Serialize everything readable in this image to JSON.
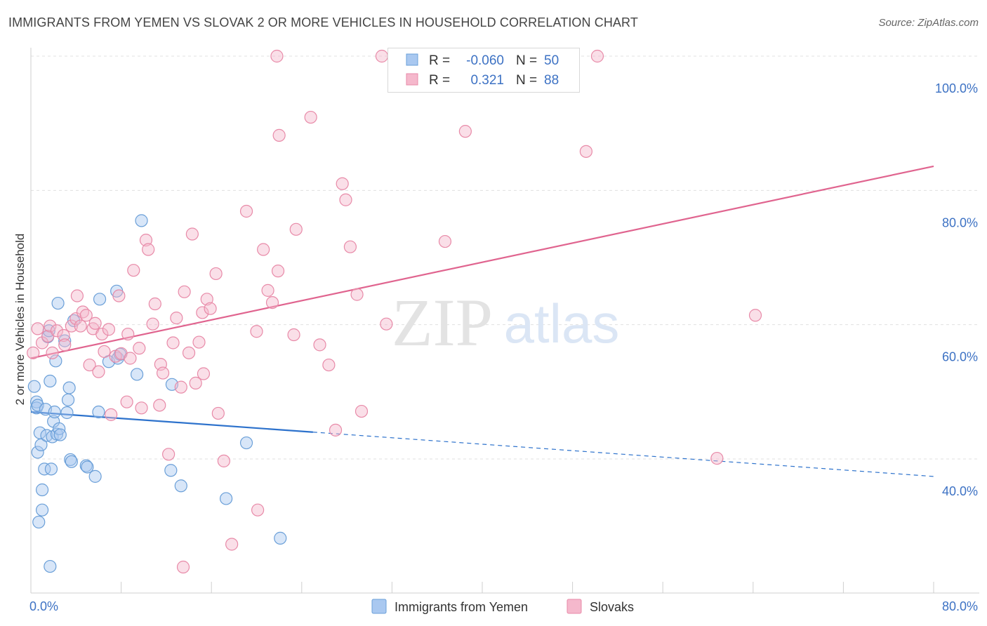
{
  "title": "IMMIGRANTS FROM YEMEN VS SLOVAK 2 OR MORE VEHICLES IN HOUSEHOLD CORRELATION CHART",
  "source": "Source: ZipAtlas.com",
  "watermark": {
    "zip": "ZIP",
    "atlas": "atlas"
  },
  "colors": {
    "blue_fill": "#a9c8f0",
    "blue_stroke": "#6a9fd8",
    "blue_line": "#2d72cc",
    "pink_fill": "#f5b8cc",
    "pink_stroke": "#e88aa8",
    "pink_line": "#e0648f",
    "axis_label": "#3d72c4",
    "grid": "#e0e0e0"
  },
  "stats_legend": [
    {
      "r_label": "R =",
      "r_value": "-0.060",
      "n_label": "N =",
      "n_value": "50",
      "color": "blue"
    },
    {
      "r_label": "R =",
      "r_value": "0.321",
      "n_label": "N =",
      "n_value": "88",
      "color": "pink"
    }
  ],
  "chart_data": {
    "type": "scatter",
    "xlabel": "",
    "ylabel": "2 or more Vehicles in Household",
    "xlim": [
      0,
      80
    ],
    "ylim": [
      20,
      103
    ],
    "x_tick_labels": [
      "0.0%",
      "80.0%"
    ],
    "y_ticks": [
      40,
      60,
      80,
      100
    ],
    "y_tick_labels": [
      "40.0%",
      "60.0%",
      "80.0%",
      "100.0%"
    ],
    "grid": true,
    "legend": "bottom",
    "series": [
      {
        "name": "Immigrants from Yemen",
        "color": "blue",
        "trend": {
          "x": [
            0,
            25
          ],
          "y": [
            47.0,
            44.0
          ],
          "dashed_to_x": 80,
          "dashed_to_y": 37.4
        },
        "points": [
          [
            0.3,
            50.8
          ],
          [
            0.5,
            48.5
          ],
          [
            0.5,
            47.6
          ],
          [
            0.6,
            48.0
          ],
          [
            0.6,
            41.0
          ],
          [
            0.7,
            30.6
          ],
          [
            0.8,
            43.9
          ],
          [
            0.9,
            42.1
          ],
          [
            1.0,
            35.4
          ],
          [
            1.0,
            32.4
          ],
          [
            1.2,
            38.5
          ],
          [
            1.3,
            47.4
          ],
          [
            1.4,
            43.5
          ],
          [
            1.5,
            58.2
          ],
          [
            1.6,
            59.1
          ],
          [
            1.7,
            51.6
          ],
          [
            1.7,
            24.0
          ],
          [
            1.8,
            38.5
          ],
          [
            1.9,
            43.3
          ],
          [
            2.0,
            45.6
          ],
          [
            2.1,
            47.0
          ],
          [
            2.2,
            54.6
          ],
          [
            2.3,
            43.7
          ],
          [
            2.4,
            63.2
          ],
          [
            2.5,
            44.5
          ],
          [
            2.6,
            43.6
          ],
          [
            3.0,
            57.6
          ],
          [
            3.2,
            46.9
          ],
          [
            3.3,
            48.8
          ],
          [
            3.4,
            50.6
          ],
          [
            3.5,
            39.9
          ],
          [
            3.6,
            39.6
          ],
          [
            3.8,
            60.6
          ],
          [
            4.9,
            39.0
          ],
          [
            5.0,
            38.8
          ],
          [
            5.7,
            37.4
          ],
          [
            6.0,
            47.0
          ],
          [
            6.1,
            63.8
          ],
          [
            6.9,
            54.5
          ],
          [
            7.6,
            65.0
          ],
          [
            7.7,
            55.0
          ],
          [
            7.9,
            55.6
          ],
          [
            9.4,
            52.6
          ],
          [
            9.8,
            75.5
          ],
          [
            12.4,
            38.3
          ],
          [
            12.5,
            51.1
          ],
          [
            13.3,
            36.0
          ],
          [
            17.3,
            34.1
          ],
          [
            19.1,
            42.4
          ],
          [
            22.1,
            28.2
          ]
        ]
      },
      {
        "name": "Slovaks",
        "color": "pink",
        "trend": {
          "x": [
            0,
            80
          ],
          "y": [
            55.0,
            83.6
          ]
        },
        "points": [
          [
            0.2,
            55.8
          ],
          [
            0.6,
            59.4
          ],
          [
            1.0,
            57.3
          ],
          [
            1.5,
            58.3
          ],
          [
            1.7,
            59.8
          ],
          [
            1.9,
            55.8
          ],
          [
            2.3,
            59.1
          ],
          [
            2.9,
            58.4
          ],
          [
            3.0,
            57.0
          ],
          [
            3.6,
            59.8
          ],
          [
            4.0,
            60.9
          ],
          [
            4.1,
            64.3
          ],
          [
            4.4,
            59.8
          ],
          [
            4.6,
            61.9
          ],
          [
            4.9,
            61.4
          ],
          [
            5.2,
            54.0
          ],
          [
            5.5,
            59.4
          ],
          [
            5.7,
            60.2
          ],
          [
            6.0,
            53.0
          ],
          [
            6.3,
            58.6
          ],
          [
            6.5,
            56.0
          ],
          [
            6.9,
            59.3
          ],
          [
            7.1,
            46.6
          ],
          [
            7.5,
            55.3
          ],
          [
            7.8,
            64.3
          ],
          [
            8.0,
            55.7
          ],
          [
            8.5,
            48.5
          ],
          [
            8.6,
            58.6
          ],
          [
            8.8,
            55.0
          ],
          [
            9.1,
            68.1
          ],
          [
            9.6,
            56.5
          ],
          [
            9.8,
            47.6
          ],
          [
            10.2,
            72.6
          ],
          [
            10.4,
            71.2
          ],
          [
            10.8,
            60.1
          ],
          [
            11.0,
            63.1
          ],
          [
            11.4,
            48.0
          ],
          [
            11.5,
            54.1
          ],
          [
            11.7,
            52.8
          ],
          [
            12.2,
            40.7
          ],
          [
            12.6,
            57.3
          ],
          [
            12.9,
            61.0
          ],
          [
            13.3,
            50.7
          ],
          [
            13.5,
            23.9
          ],
          [
            13.6,
            64.9
          ],
          [
            14.0,
            55.8
          ],
          [
            14.3,
            73.5
          ],
          [
            14.6,
            51.3
          ],
          [
            14.9,
            57.4
          ],
          [
            15.2,
            61.8
          ],
          [
            15.3,
            52.7
          ],
          [
            15.6,
            63.8
          ],
          [
            15.9,
            62.4
          ],
          [
            16.4,
            67.6
          ],
          [
            16.6,
            46.8
          ],
          [
            17.1,
            39.7
          ],
          [
            17.8,
            27.3
          ],
          [
            19.1,
            76.9
          ],
          [
            20.0,
            59.0
          ],
          [
            20.1,
            32.4
          ],
          [
            20.6,
            71.2
          ],
          [
            21.0,
            65.1
          ],
          [
            21.4,
            63.3
          ],
          [
            21.9,
            68.0
          ],
          [
            22.0,
            88.2
          ],
          [
            21.8,
            100.0
          ],
          [
            23.3,
            58.5
          ],
          [
            23.5,
            74.2
          ],
          [
            24.8,
            90.9
          ],
          [
            25.6,
            57.0
          ],
          [
            26.4,
            54.0
          ],
          [
            27.0,
            44.3
          ],
          [
            27.6,
            81.0
          ],
          [
            27.9,
            78.6
          ],
          [
            28.3,
            71.6
          ],
          [
            28.9,
            64.5
          ],
          [
            29.3,
            47.1
          ],
          [
            31.5,
            60.1
          ],
          [
            31.1,
            100.0
          ],
          [
            30.8,
            17.4
          ],
          [
            36.7,
            72.4
          ],
          [
            38.0,
            100.2
          ],
          [
            38.5,
            88.8
          ],
          [
            41.0,
            17.4
          ],
          [
            49.2,
            85.8
          ],
          [
            50.2,
            100.0
          ],
          [
            60.8,
            40.1
          ],
          [
            64.2,
            61.4
          ]
        ]
      }
    ]
  }
}
